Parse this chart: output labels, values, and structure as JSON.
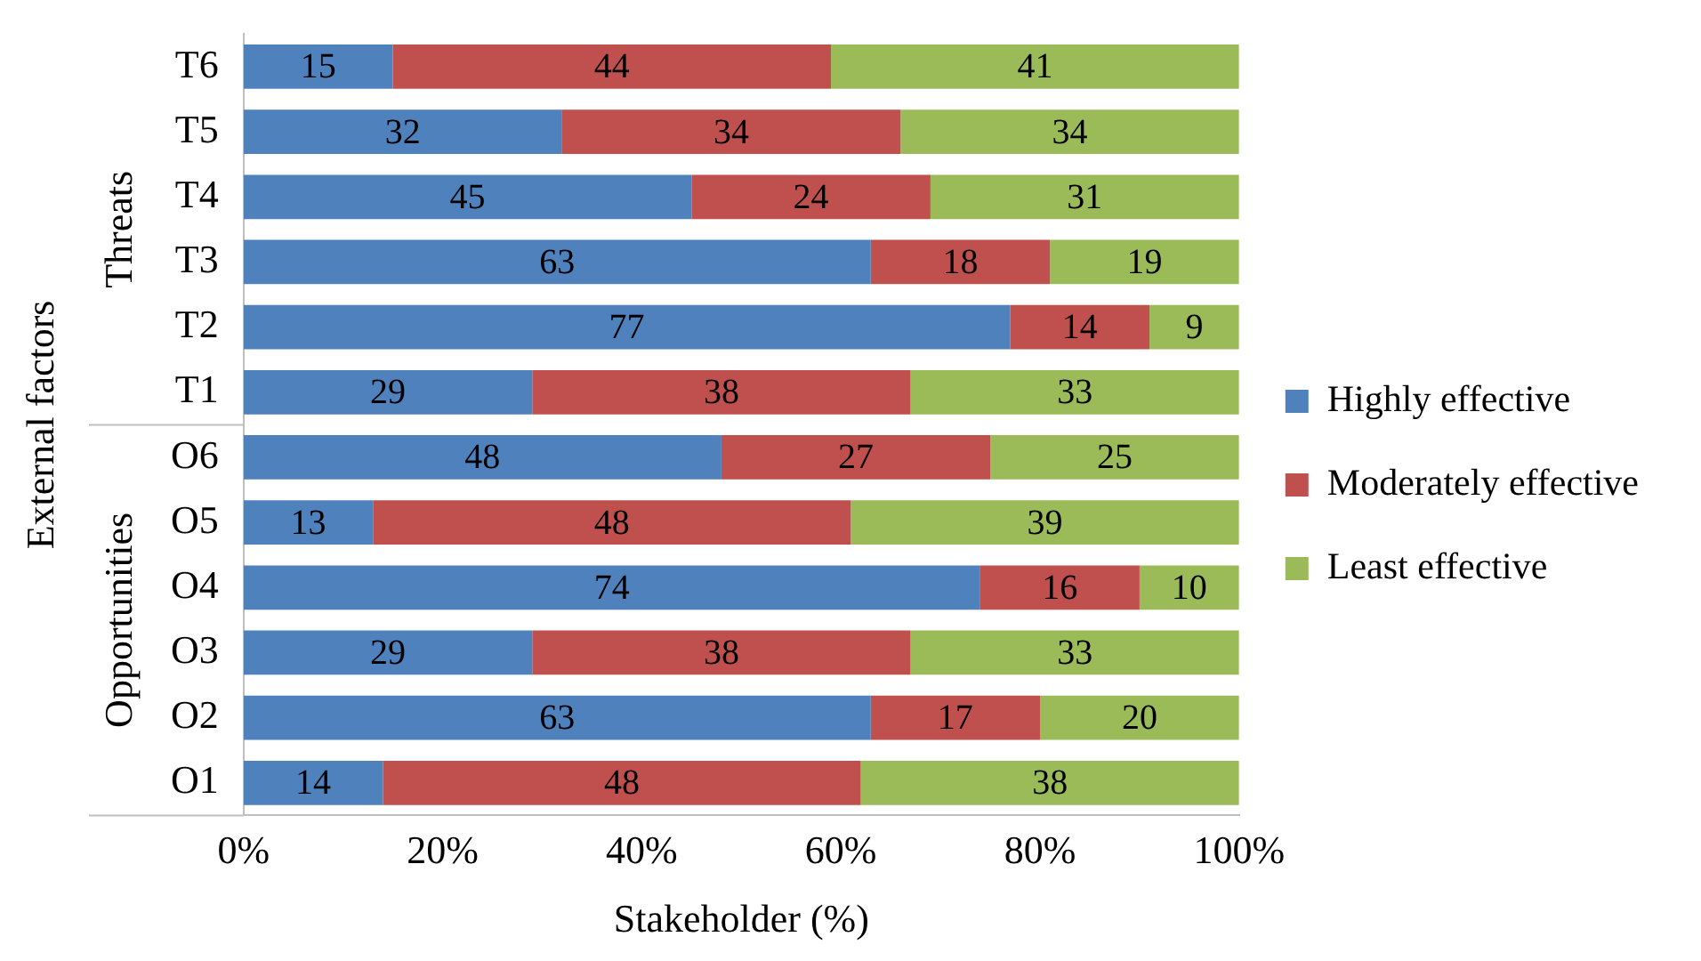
{
  "chart_data": {
    "type": "bar",
    "orientation": "horizontal",
    "stacked": true,
    "xlabel": "Stakeholder (%)",
    "ylabel": "External factors",
    "annotations": [
      "Threats",
      "Opportunities"
    ],
    "categories": [
      "T6",
      "T5",
      "T4",
      "T3",
      "T2",
      "T1",
      "O6",
      "O5",
      "O4",
      "O3",
      "O2",
      "O1"
    ],
    "series": [
      {
        "name": "Highly effective",
        "color": "#4f81bd",
        "values": [
          15,
          32,
          45,
          63,
          77,
          29,
          48,
          13,
          74,
          29,
          63,
          14
        ]
      },
      {
        "name": "Moderately effective",
        "color": "#c0504d",
        "values": [
          44,
          34,
          24,
          18,
          14,
          38,
          27,
          48,
          16,
          38,
          17,
          48
        ]
      },
      {
        "name": "Least effective",
        "color": "#9bbb59",
        "values": [
          41,
          34,
          31,
          19,
          9,
          33,
          25,
          39,
          10,
          33,
          20,
          38
        ]
      }
    ],
    "xlim": [
      0,
      100
    ],
    "xticks": [
      {
        "value": 0,
        "label": "0%"
      },
      {
        "value": 20,
        "label": "20%"
      },
      {
        "value": 40,
        "label": "40%"
      },
      {
        "value": 60,
        "label": "60%"
      },
      {
        "value": 80,
        "label": "80%"
      },
      {
        "value": 100,
        "label": "100%"
      }
    ],
    "data_labels": true,
    "grid": false,
    "legend": "right"
  }
}
